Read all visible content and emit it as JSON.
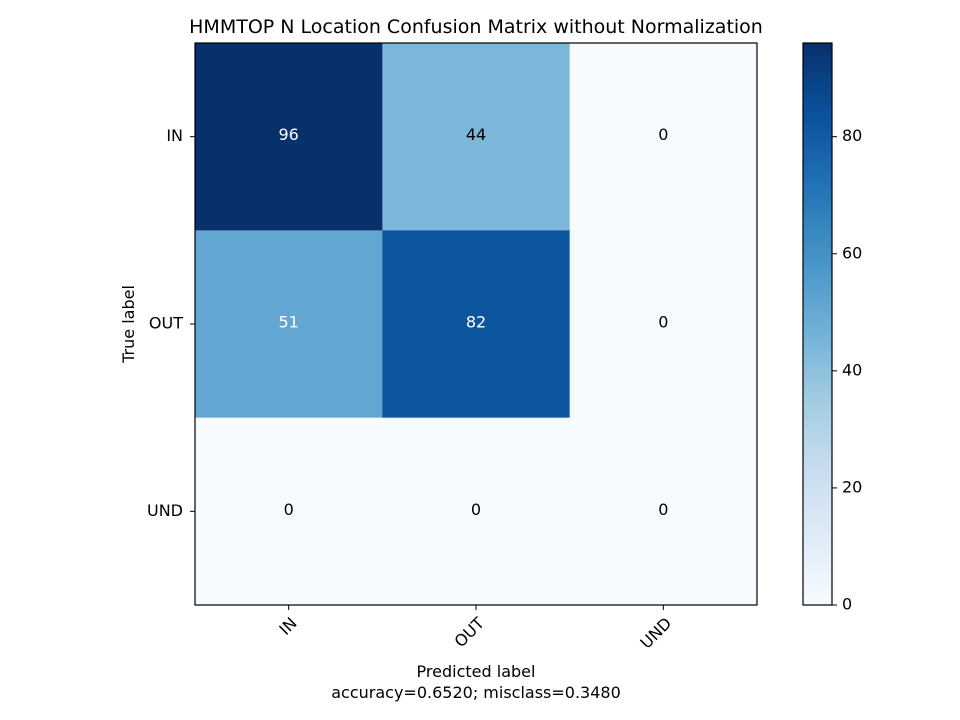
{
  "chart_data": {
    "type": "heatmap",
    "title": "HMMTOP N Location Confusion Matrix without Normalization",
    "xlabel": "Predicted label",
    "xlabel_sub": "accuracy=0.6520; misclass=0.3480",
    "ylabel": "True label",
    "x_categories": [
      "IN",
      "OUT",
      "UND"
    ],
    "y_categories": [
      "IN",
      "OUT",
      "UND"
    ],
    "matrix": [
      [
        96,
        44,
        0
      ],
      [
        51,
        82,
        0
      ],
      [
        0,
        0,
        0
      ]
    ],
    "colormap": "Blues",
    "color_range": [
      0,
      96
    ],
    "colorbar_ticks": [
      0,
      20,
      40,
      60,
      80
    ],
    "grid": false,
    "x_tick_rotation_deg": 45
  }
}
